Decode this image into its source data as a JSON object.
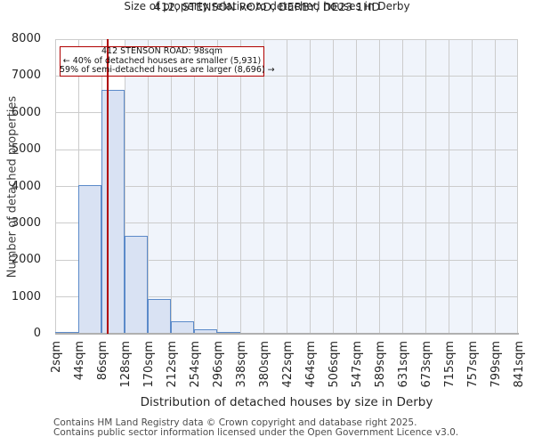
{
  "header": {
    "title": "412, STENSON ROAD, DERBY, DE23 1HD",
    "subtitle": "Size of property relative to detached houses in Derby"
  },
  "chart_data": {
    "type": "bar",
    "title": "412, STENSON ROAD, DERBY, DE23 1HD",
    "subtitle": "Size of property relative to detached houses in Derby",
    "xlabel": "Distribution of detached houses by size in Derby",
    "ylabel": "Number of detached properties",
    "categories": [
      "2sqm",
      "44sqm",
      "86sqm",
      "128sqm",
      "170sqm",
      "212sqm",
      "254sqm",
      "296sqm",
      "338sqm",
      "380sqm",
      "422sqm",
      "464sqm",
      "506sqm",
      "547sqm",
      "589sqm",
      "631sqm",
      "673sqm",
      "715sqm",
      "757sqm",
      "799sqm",
      "841sqm"
    ],
    "bin_start_sqm": 2,
    "bin_width_sqm": 42,
    "values": [
      50,
      4030,
      6630,
      2650,
      950,
      330,
      110,
      60,
      30,
      12,
      0,
      0,
      0,
      0,
      0,
      0,
      0,
      0,
      0,
      0
    ],
    "y_ticks": [
      0,
      1000,
      2000,
      3000,
      4000,
      5000,
      6000,
      7000,
      8000
    ],
    "ylim": [
      0,
      8000
    ],
    "grid": true,
    "legend": false,
    "marker": {
      "value_sqm": 98,
      "label": "412 STENSON ROAD: 98sqm"
    },
    "shaded_region_from_sqm": 128
  },
  "annotation": {
    "line1": "412 STENSON ROAD: 98sqm",
    "line2": "← 40% of detached houses are smaller (5,931)",
    "line3": "59% of semi-detached houses are larger (8,696) →"
  },
  "footer": {
    "line1": "Contains HM Land Registry data © Crown copyright and database right 2025.",
    "line2": "Contains public sector information licensed under the Open Government Licence v3.0."
  },
  "colors": {
    "bar_fill": "#d9e2f3",
    "bar_edge": "#5b8ac9",
    "marker_line": "#b00000",
    "annotation_border": "#b00000",
    "shaded_bg": "#f0f4fb",
    "gridline": "#cccccc",
    "axis_line": "#b0b0b0",
    "footer_text": "#4d4d4d"
  }
}
